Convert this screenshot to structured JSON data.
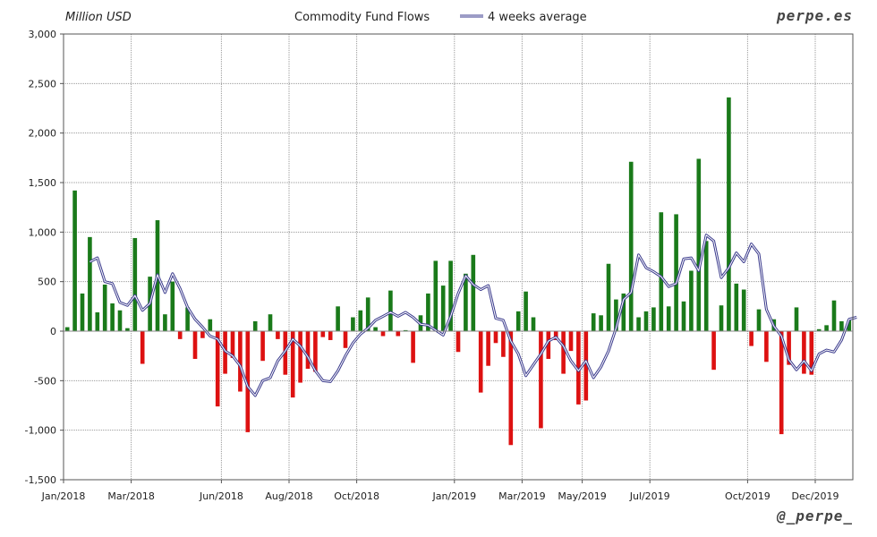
{
  "chart_data": {
    "type": "bar",
    "title": "Commodity Fund Flows",
    "unit_label": "Million USD",
    "legend": {
      "line_label": "4 weeks average",
      "placement": "top-center"
    },
    "watermark_top": "perpe.es",
    "watermark_bottom": "@_perpe_",
    "ylim": [
      -1500,
      3000
    ],
    "y_ticks": [
      3000,
      2500,
      2000,
      1500,
      1000,
      500,
      0,
      -500,
      -1000,
      -1500
    ],
    "y_tick_labels": [
      "3,000",
      "2,500",
      "2,000",
      "1,500",
      "1,000",
      "500",
      "0",
      "-500",
      "-1,000",
      "-1,500"
    ],
    "x_tick_labels": [
      "Jan/2018",
      "Mar/2018",
      "Jun/2018",
      "Aug/2018",
      "Oct/2018",
      "Jan/2019",
      "Mar/2019",
      "May/2019",
      "Jul/2019",
      "Oct/2019",
      "Dec/2019"
    ],
    "x_tick_weeks": [
      0,
      9,
      21,
      30,
      39,
      52,
      61,
      69,
      78,
      91,
      100
    ],
    "grid": true,
    "colors": {
      "positive": "#1a7a1a",
      "negative": "#dd1111",
      "line": "#3a3a8c",
      "grid": "#9a9a9a"
    },
    "series": [
      {
        "kind": "bar",
        "values": [
          40,
          1420,
          380,
          950,
          190,
          470,
          280,
          210,
          30,
          940,
          -330,
          550,
          1120,
          170,
          500,
          -80,
          240,
          -280,
          -70,
          120,
          -760,
          -430,
          -270,
          -610,
          -1020,
          100,
          -300,
          170,
          -80,
          -440,
          -670,
          -520,
          -380,
          -410,
          -60,
          -90,
          250,
          -170,
          140,
          210,
          340,
          40,
          -50,
          410,
          -50,
          10,
          -320,
          160,
          380,
          710,
          460,
          710,
          -210,
          580,
          770,
          -620,
          -350,
          -120,
          -260,
          -1150,
          200,
          400,
          140,
          -980,
          -280,
          -90,
          -430,
          -200,
          -740,
          -700,
          180,
          160,
          680,
          320,
          380,
          1710,
          140,
          200,
          240,
          1200,
          250,
          1180,
          300,
          610,
          1740,
          910,
          -390,
          260,
          2360,
          480,
          420,
          -150,
          220,
          -310,
          120,
          -1040,
          -340,
          240,
          -430,
          -440,
          20,
          60,
          310,
          100,
          110
        ]
      },
      {
        "kind": "line",
        "name": "4 weeks average",
        "start_week": 3,
        "values": [
          700,
          740,
          500,
          480,
          290,
          260,
          360,
          210,
          280,
          570,
          390,
          580,
          430,
          240,
          120,
          40,
          -50,
          -80,
          -200,
          -250,
          -350,
          -560,
          -650,
          -500,
          -470,
          -300,
          -200,
          -80,
          -150,
          -260,
          -400,
          -500,
          -510,
          -400,
          -250,
          -120,
          -30,
          30,
          110,
          150,
          190,
          150,
          190,
          140,
          70,
          60,
          10,
          -40,
          150,
          380,
          560,
          470,
          420,
          460,
          130,
          110,
          -100,
          -230,
          -450,
          -340,
          -230,
          -100,
          -60,
          -150,
          -300,
          -400,
          -300,
          -470,
          -360,
          -200,
          30,
          320,
          390,
          770,
          640,
          600,
          550,
          450,
          480,
          730,
          740,
          610,
          970,
          910,
          540,
          640,
          790,
          700,
          880,
          780,
          220,
          50,
          -50,
          -290,
          -390,
          -300,
          -400,
          -230,
          -190,
          -210,
          -90,
          120,
          140
        ]
      }
    ]
  }
}
